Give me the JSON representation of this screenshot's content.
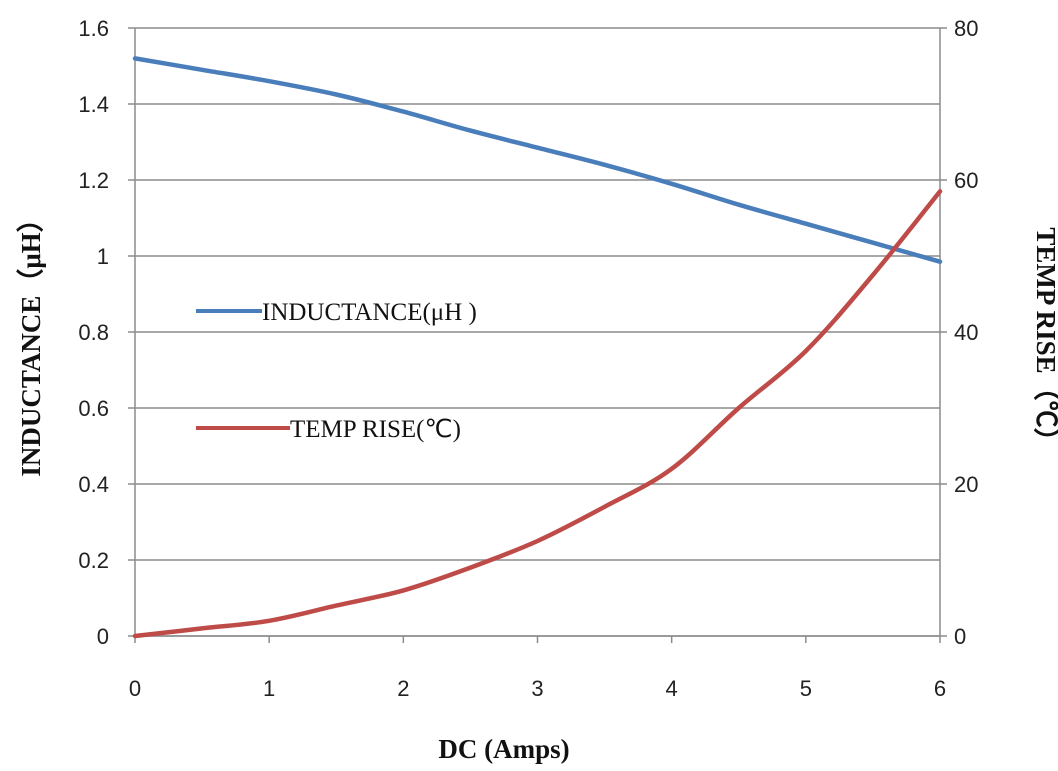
{
  "chart_data": {
    "type": "line",
    "xlabel": "DC (Amps)",
    "ylabel_left": "INDUCTANCE（μH）",
    "ylabel_right": "TEMP RISE（℃）",
    "xlim": [
      0,
      6
    ],
    "ylim_left": [
      0,
      1.6
    ],
    "ylim_right": [
      0,
      80
    ],
    "x_ticks": [
      "0",
      "1",
      "2",
      "3",
      "4",
      "5",
      "6"
    ],
    "y_left_ticks": [
      "0",
      "0.2",
      "0.4",
      "0.6",
      "0.8",
      "1",
      "1.2",
      "1.4",
      "1.6"
    ],
    "y_right_ticks": [
      "0",
      "20",
      "40",
      "60",
      "80"
    ],
    "grid": true,
    "legend_position": "left-middle",
    "series": [
      {
        "name": "INDUCTANCE(μH )",
        "axis": "left",
        "color": "#4a7ebb",
        "x": [
          0,
          0.5,
          1,
          1.5,
          2,
          2.5,
          3,
          3.5,
          4,
          4.5,
          5,
          5.5,
          6
        ],
        "y": [
          1.52,
          1.49,
          1.46,
          1.425,
          1.38,
          1.33,
          1.285,
          1.24,
          1.19,
          1.135,
          1.085,
          1.035,
          0.985
        ]
      },
      {
        "name": "TEMP RISE(℃)",
        "axis": "right",
        "color": "#be4b48",
        "x": [
          0,
          0.5,
          1,
          1.5,
          2,
          2.5,
          3,
          3.5,
          4,
          4.5,
          5,
          5.5,
          6
        ],
        "y": [
          0,
          1,
          2,
          4,
          6,
          9,
          12.5,
          17,
          22,
          30,
          37.5,
          47.5,
          58.5
        ]
      }
    ]
  }
}
